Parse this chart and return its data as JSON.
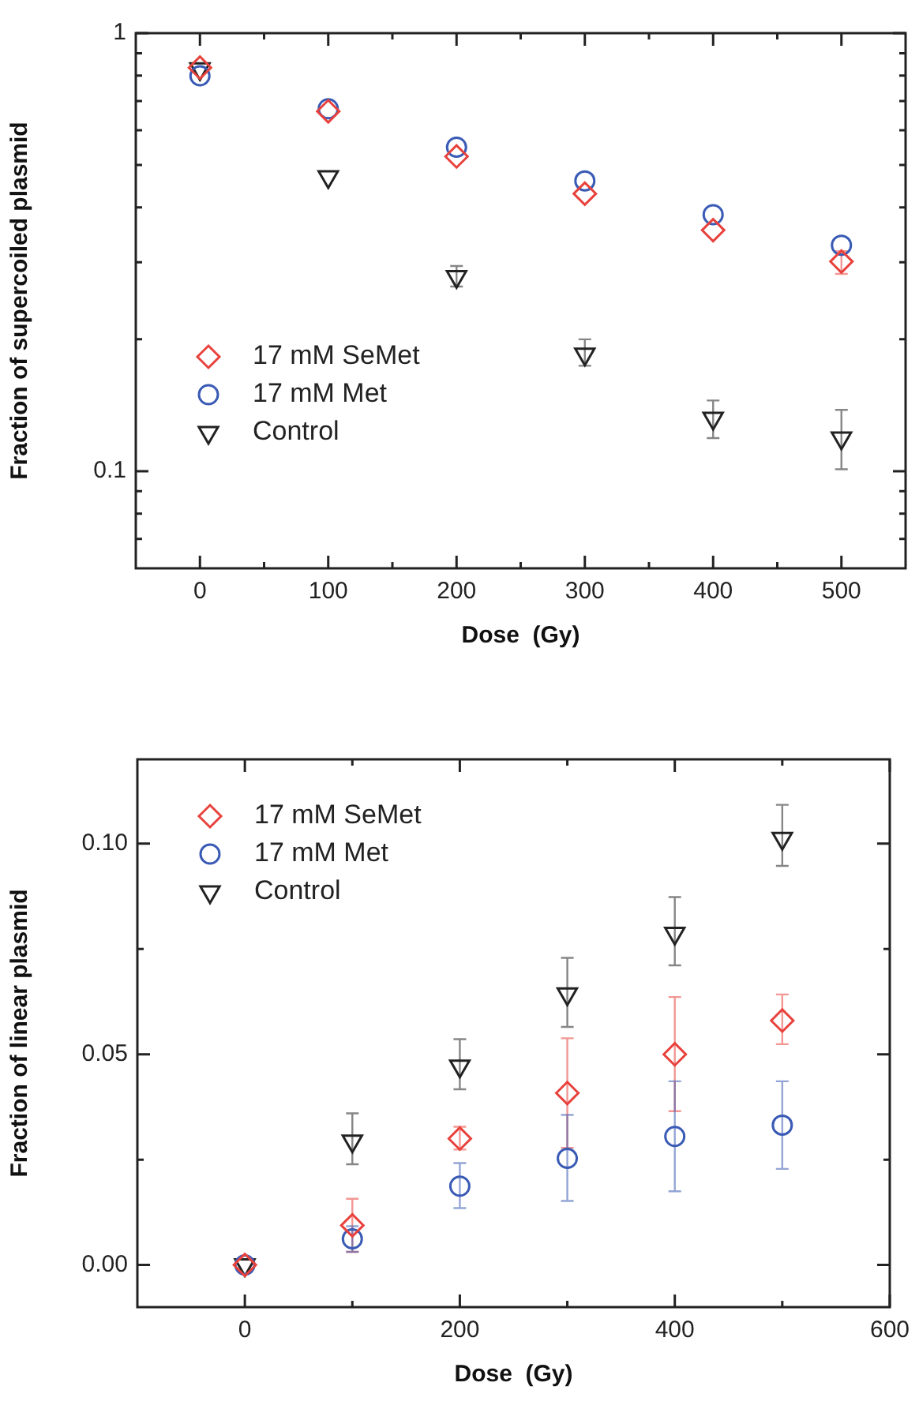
{
  "chart_data": [
    {
      "type": "scatter",
      "xlabel": "Dose  (Gy)",
      "ylabel": "Fraction of supercoiled plasmid",
      "log": "y",
      "grid": false,
      "legend": "bottom left",
      "xlim": [
        -50,
        550
      ],
      "xticks": [
        0,
        {
          "value": 50,
          "label": null
        },
        100,
        {
          "value": 150,
          "label": null
        },
        200,
        {
          "value": 250,
          "label": null
        },
        300,
        {
          "value": 350,
          "label": null
        },
        400,
        {
          "value": 450,
          "label": null
        },
        500
      ],
      "ylim": [
        0.06,
        1
      ],
      "yticks": [
        {
          "value": 0.07,
          "label": null
        },
        {
          "value": 0.08,
          "label": null
        },
        {
          "value": 0.09,
          "label": null
        },
        0.1,
        {
          "value": 0.2,
          "label": null
        },
        {
          "value": 0.3,
          "label": null
        },
        {
          "value": 0.4,
          "label": null
        },
        {
          "value": 0.5,
          "label": null
        },
        {
          "value": 0.6,
          "label": null
        },
        {
          "value": 0.7,
          "label": null
        },
        {
          "value": 0.8,
          "label": null
        },
        {
          "value": 0.9,
          "label": null
        },
        1
      ],
      "x": [
        0,
        100,
        200,
        300,
        400,
        500
      ],
      "series": [
        {
          "name": "17 mM SeMet",
          "color": "#e8413c",
          "marker": "diamond",
          "values": [
            0.834,
            0.663,
            0.523,
            0.43,
            0.355,
            0.301
          ],
          "errors": [
            null,
            null,
            null,
            null,
            null,
            [
              0.282,
              0.318
            ]
          ]
        },
        {
          "name": "17 mM Met",
          "color": "#3a5bb5",
          "marker": "circle",
          "values": [
            0.799,
            0.672,
            0.549,
            0.46,
            0.385,
            0.328
          ]
        },
        {
          "name": "Control",
          "color": "#222222",
          "marker": "triangle",
          "values": [
            0.829,
            0.47,
            0.278,
            0.185,
            0.132,
            0.119
          ],
          "errors": [
            null,
            null,
            [
              0.264,
              0.294
            ],
            [
              0.174,
              0.2
            ],
            [
              0.119,
              0.145
            ],
            [
              0.101,
              0.138
            ]
          ]
        }
      ]
    },
    {
      "type": "scatter",
      "xlabel": "Dose  (Gy)",
      "ylabel": "Fraction of linear plasmid",
      "grid": false,
      "legend": "top left",
      "xlim": [
        -100,
        600
      ],
      "xticks": [
        0,
        {
          "value": 100,
          "label": null
        },
        200,
        {
          "value": 300,
          "label": null
        },
        400,
        {
          "value": 500,
          "label": null
        },
        600
      ],
      "ylim": [
        -0.01,
        0.12
      ],
      "yticks": [
        {
          "value": 0,
          "label": "0.00"
        },
        {
          "value": 0.025,
          "label": null
        },
        {
          "value": 0.05,
          "label": "0.05"
        },
        {
          "value": 0.075,
          "label": null
        },
        {
          "value": 0.1,
          "label": "0.10"
        }
      ],
      "x": [
        0,
        100,
        200,
        300,
        400,
        500
      ],
      "series": [
        {
          "name": "17 mM SeMet",
          "color": "#e8413c",
          "marker": "diamond",
          "values": [
            0,
            0.0094,
            0.03,
            0.0408,
            0.05,
            0.058
          ],
          "errors": [
            null,
            [
              0.0031,
              0.0157
            ],
            [
              0.0274,
              0.0328
            ],
            [
              0.0278,
              0.0538
            ],
            [
              0.0365,
              0.0636
            ],
            [
              0.0524,
              0.0642
            ]
          ]
        },
        {
          "name": "17 mM Met",
          "color": "#3a5bb5",
          "marker": "circle",
          "values": [
            0,
            0.0062,
            0.0187,
            0.0253,
            0.0305,
            0.0332
          ],
          "errors": [
            null,
            [
              0.0031,
              0.0092
            ],
            [
              0.0135,
              0.0242
            ],
            [
              0.0152,
              0.0356
            ],
            [
              0.0175,
              0.0436
            ],
            [
              0.0228,
              0.0436
            ]
          ]
        },
        {
          "name": "Control",
          "color": "#222222",
          "marker": "triangle",
          "values": [
            0,
            0.0294,
            0.0472,
            0.0643,
            0.0787,
            0.1012
          ],
          "errors": [
            null,
            [
              0.0239,
              0.036
            ],
            [
              0.0417,
              0.0536
            ],
            [
              0.0565,
              0.0729
            ],
            [
              0.0711,
              0.0873
            ],
            [
              0.0947,
              0.1092
            ]
          ]
        }
      ]
    }
  ]
}
